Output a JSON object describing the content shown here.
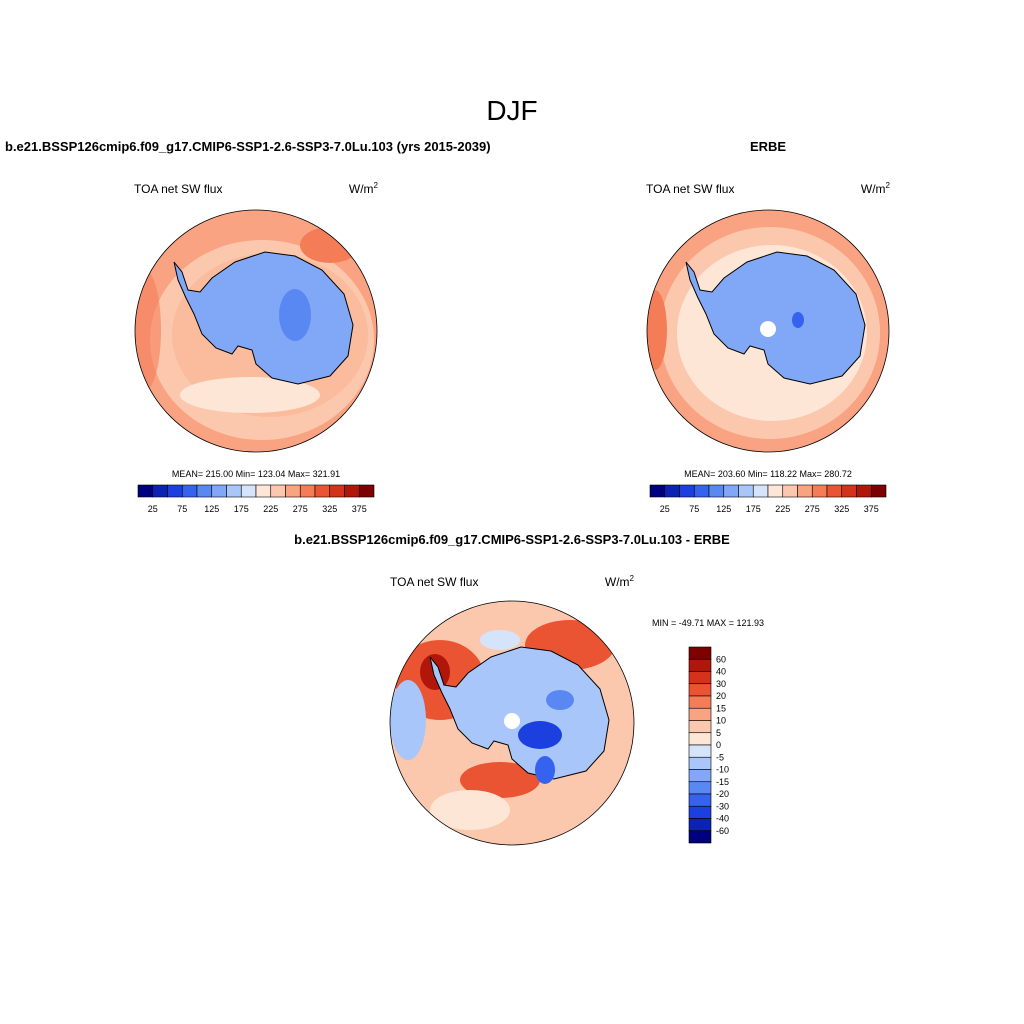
{
  "header": {
    "title": "DJF"
  },
  "panels": [
    {
      "title": "b.e21.BSSP126cmip6.f09_g17.CMIP6-SSP1-2.6-SSP3-7.0Lu.103 (yrs 2015-2039)",
      "variable": "TOA net SW flux",
      "units_base": "W/m",
      "units_exp": "2",
      "stats": "MEAN= 215.00  Min= 123.04  Max= 321.91",
      "colorbar": {
        "labels": [
          "25",
          "75",
          "125",
          "175",
          "225",
          "275",
          "325",
          "375"
        ],
        "colors": [
          "#00007f",
          "#0b22b4",
          "#1c40e0",
          "#3563ef",
          "#5a88f3",
          "#80a8f6",
          "#a9c6fa",
          "#d5e4fb",
          "#fde6d6",
          "#fcc8ad",
          "#f9a382",
          "#f47d58",
          "#eb5432",
          "#d4321a",
          "#b0170a",
          "#7f0000"
        ]
      }
    },
    {
      "title": "ERBE",
      "variable": "TOA net SW flux",
      "units_base": "W/m",
      "units_exp": "2",
      "stats": "MEAN= 203.60  Min= 118.22  Max= 280.72",
      "colorbar": {
        "labels": [
          "25",
          "75",
          "125",
          "175",
          "225",
          "275",
          "325",
          "375"
        ],
        "colors": [
          "#00007f",
          "#0b22b4",
          "#1c40e0",
          "#3563ef",
          "#5a88f3",
          "#80a8f6",
          "#a9c6fa",
          "#d5e4fb",
          "#fde6d6",
          "#fcc8ad",
          "#f9a382",
          "#f47d58",
          "#eb5432",
          "#d4321a",
          "#b0170a",
          "#7f0000"
        ]
      }
    },
    {
      "title": "b.e21.BSSP126cmip6.f09_g17.CMIP6-SSP1-2.6-SSP3-7.0Lu.103 - ERBE",
      "variable": "TOA net SW flux",
      "units_base": "W/m",
      "units_exp": "2",
      "stats": "MIN = -49.71 MAX = 121.93",
      "colorbar": {
        "labels": [
          "60",
          "40",
          "30",
          "20",
          "15",
          "10",
          "5",
          "0",
          "-5",
          "-10",
          "-15",
          "-20",
          "-30",
          "-40",
          "-60"
        ],
        "colors": [
          "#7f0000",
          "#b0170a",
          "#d4321a",
          "#eb5432",
          "#f47d58",
          "#f9a382",
          "#fcc8ad",
          "#fde6d6",
          "#d5e4fb",
          "#a9c6fa",
          "#80a8f6",
          "#5a88f3",
          "#3563ef",
          "#1c40e0",
          "#0b22b4",
          "#00007f"
        ]
      }
    }
  ]
}
